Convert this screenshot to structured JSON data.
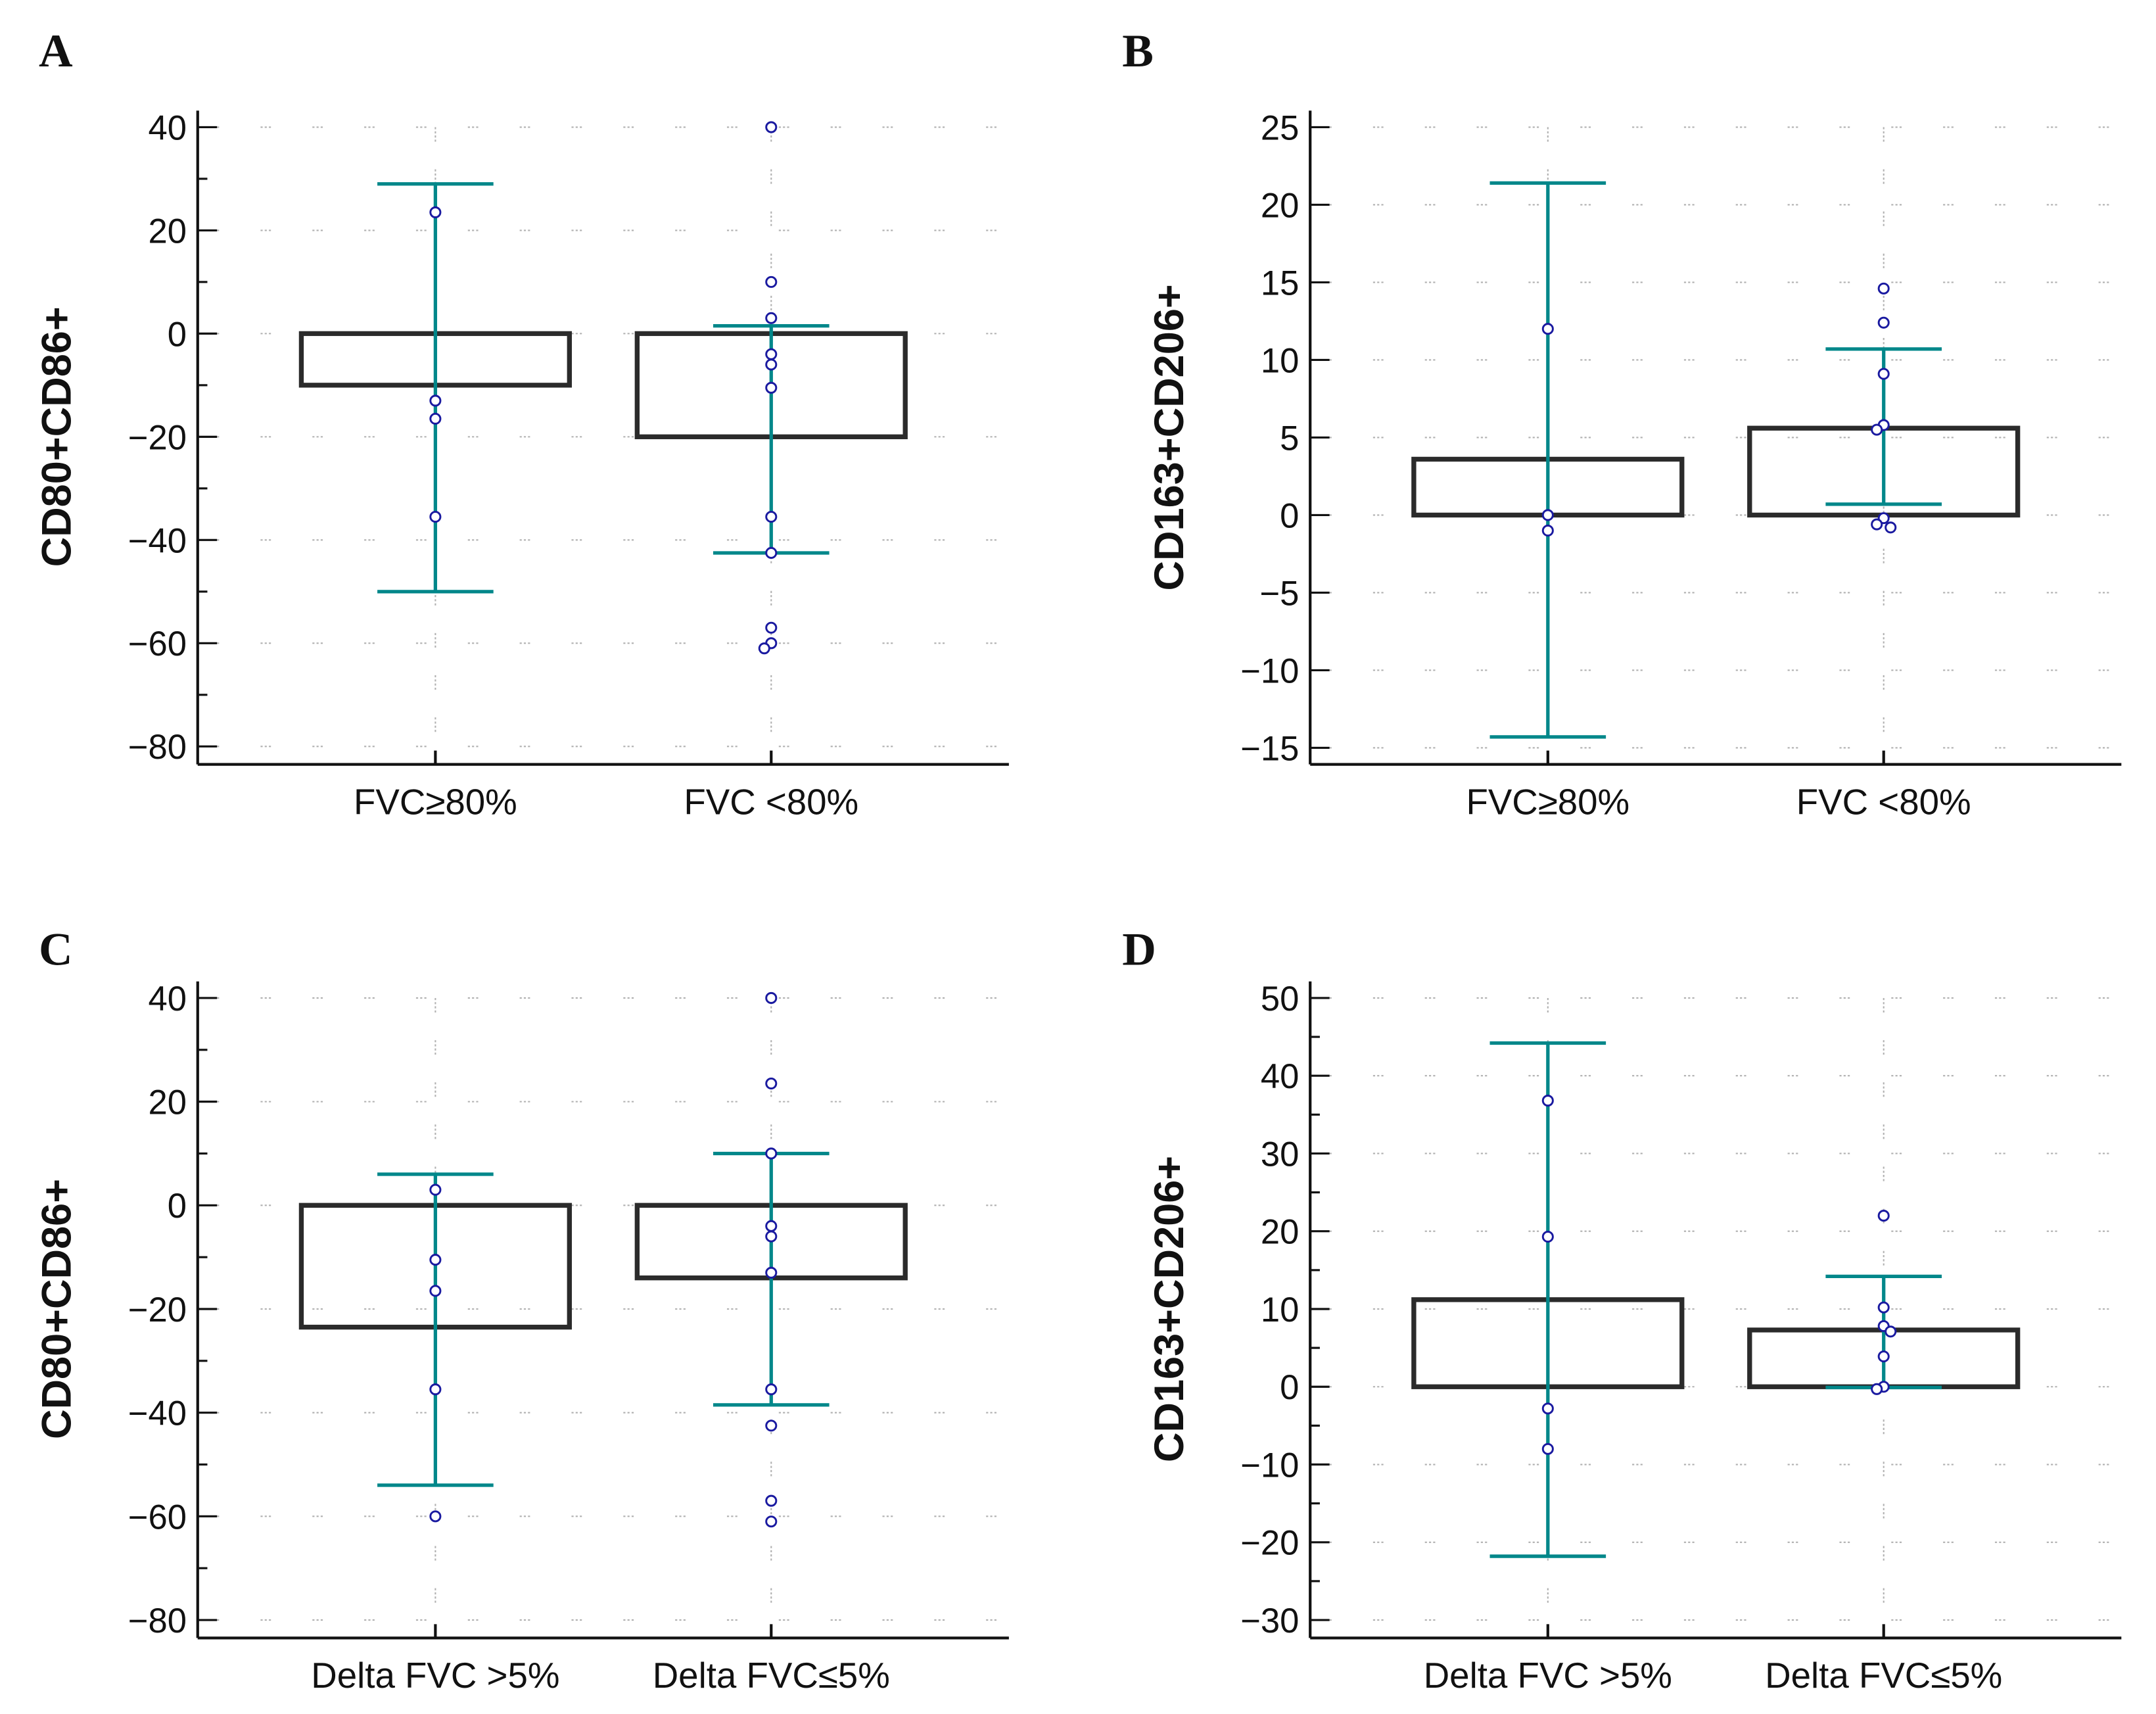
{
  "colors": {
    "box": "#2b2b2b",
    "error_bar": "#00878a",
    "point": "#1a1aa0",
    "grid": "#b0b0b0"
  },
  "chart_data": [
    {
      "panel": "A",
      "type": "bar",
      "ylabel": "CD80+CD86+",
      "xlabel": "",
      "ylim": [
        -80,
        40
      ],
      "yticks": [
        40,
        20,
        0,
        -20,
        -40,
        -60,
        -80
      ],
      "minor_step": 10,
      "categories": [
        "FVC≥80%",
        "FVC <80%"
      ],
      "means": [
        -10,
        -20
      ],
      "error_high": [
        29,
        1.5
      ],
      "error_low": [
        -50,
        -42.5
      ],
      "points": [
        [
          23.5,
          -13,
          -16.5,
          -35.5
        ],
        [
          40,
          10,
          3,
          -4,
          -6,
          -10.5,
          -35.5,
          -42.5,
          -57,
          -60,
          -61
        ]
      ],
      "grid": true
    },
    {
      "panel": "B",
      "type": "bar",
      "ylabel": "CD163+CD206+",
      "xlabel": "",
      "ylim": [
        -15,
        25
      ],
      "yticks": [
        25,
        20,
        15,
        10,
        5,
        0,
        -5,
        -10,
        -15
      ],
      "minor_step": 5,
      "categories": [
        "FVC≥80%",
        "FVC <80%"
      ],
      "means": [
        3.6,
        5.6
      ],
      "error_high": [
        21.4,
        10.7
      ],
      "error_low": [
        -14.3,
        0.7
      ],
      "points": [
        [
          12,
          0,
          -1
        ],
        [
          14.6,
          12.4,
          9.1,
          5.8,
          5.5,
          -0.2,
          -0.6,
          -0.8
        ]
      ],
      "grid": true
    },
    {
      "panel": "C",
      "type": "bar",
      "ylabel": "CD80+CD86+",
      "xlabel": "",
      "ylim": [
        -80,
        40
      ],
      "yticks": [
        40,
        20,
        0,
        -20,
        -40,
        -60,
        -80
      ],
      "minor_step": 10,
      "categories": [
        "Delta FVC >5%",
        "Delta FVC≤5%"
      ],
      "means": [
        -23.5,
        -14
      ],
      "error_high": [
        6,
        10
      ],
      "error_low": [
        -54,
        -38.5
      ],
      "points": [
        [
          3,
          -10.5,
          -16.5,
          -35.5,
          -60
        ],
        [
          40,
          23.5,
          10,
          -4,
          -6,
          -13,
          -35.5,
          -42.5,
          -57,
          -61
        ]
      ],
      "grid": true
    },
    {
      "panel": "D",
      "type": "bar",
      "ylabel": "CD163+CD206+",
      "xlabel": "",
      "ylim": [
        -30,
        50
      ],
      "yticks": [
        50,
        40,
        30,
        20,
        10,
        0,
        -10,
        -20,
        -30
      ],
      "minor_step": 5,
      "categories": [
        "Delta FVC >5%",
        "Delta FVC≤5%"
      ],
      "means": [
        11.2,
        7.3
      ],
      "error_high": [
        44.2,
        14.2
      ],
      "error_low": [
        -21.8,
        -0.1
      ],
      "points": [
        [
          36.8,
          19.3,
          -2.8,
          -8
        ],
        [
          22,
          10.2,
          7.8,
          7.1,
          3.9,
          0,
          -0.3
        ]
      ],
      "grid": true
    }
  ]
}
